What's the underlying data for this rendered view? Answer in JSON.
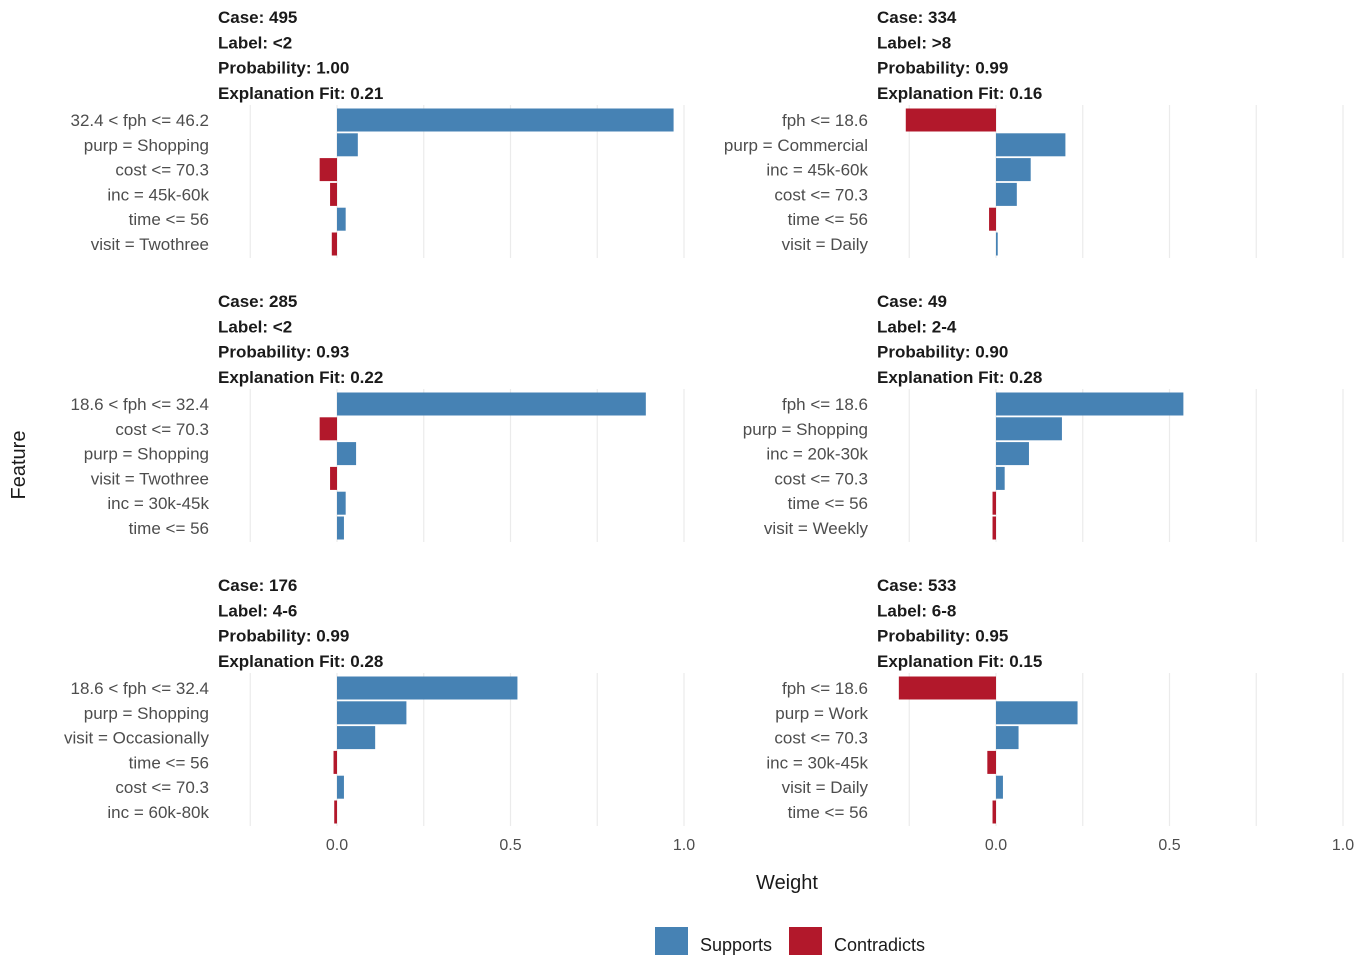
{
  "chart_data": {
    "type": "bar",
    "orientation": "horizontal",
    "xlabel": "Weight",
    "ylabel": "Feature",
    "xlim": [
      -0.25,
      1.0
    ],
    "x_ticks": [
      "0.0",
      "0.5",
      "1.0"
    ],
    "x_tick_values": [
      0.0,
      0.5,
      1.0
    ],
    "grid": true,
    "legend": {
      "placement": "bottom",
      "entries": [
        {
          "name": "Supports",
          "color": "#4682B4"
        },
        {
          "name": "Contradicts",
          "color": "#B2182B"
        }
      ]
    },
    "panels": [
      {
        "case": "Case: 495",
        "label": "Label: <2",
        "probability": "Probability: 1.00",
        "fit": "Explanation Fit: 0.21",
        "features": [
          "32.4 < fph <= 46.2",
          "purp = Shopping",
          "cost <= 70.3",
          "inc = 45k-60k",
          "time <= 56",
          "visit = Twothree"
        ],
        "weights": [
          0.97,
          0.06,
          -0.05,
          -0.02,
          0.025,
          -0.015
        ]
      },
      {
        "case": "Case: 334",
        "label": "Label: >8",
        "probability": "Probability: 0.99",
        "fit": "Explanation Fit: 0.16",
        "features": [
          "fph <= 18.6",
          "purp = Commercial",
          "inc = 45k-60k",
          "cost <= 70.3",
          "time <= 56",
          "visit = Daily"
        ],
        "weights": [
          -0.26,
          0.2,
          0.1,
          0.06,
          -0.02,
          0.005
        ]
      },
      {
        "case": "Case: 285",
        "label": "Label: <2",
        "probability": "Probability: 0.93",
        "fit": "Explanation Fit: 0.22",
        "features": [
          "18.6 < fph <= 32.4",
          "cost <= 70.3",
          "purp = Shopping",
          "visit = Twothree",
          "inc = 30k-45k",
          "time <= 56"
        ],
        "weights": [
          0.89,
          -0.05,
          0.055,
          -0.02,
          0.025,
          0.02
        ]
      },
      {
        "case": "Case: 49",
        "label": "Label: 2-4",
        "probability": "Probability: 0.90",
        "fit": "Explanation Fit: 0.28",
        "features": [
          "fph <= 18.6",
          "purp = Shopping",
          "inc = 20k-30k",
          "cost <= 70.3",
          "time <= 56",
          "visit = Weekly"
        ],
        "weights": [
          0.54,
          0.19,
          0.095,
          0.025,
          -0.01,
          -0.01
        ]
      },
      {
        "case": "Case: 176",
        "label": "Label: 4-6",
        "probability": "Probability: 0.99",
        "fit": "Explanation Fit: 0.28",
        "features": [
          "18.6 < fph <= 32.4",
          "purp = Shopping",
          "visit = Occasionally",
          "time <= 56",
          "cost <= 70.3",
          "inc = 60k-80k"
        ],
        "weights": [
          0.52,
          0.2,
          0.11,
          -0.01,
          0.02,
          -0.008
        ]
      },
      {
        "case": "Case: 533",
        "label": "Label: 6-8",
        "probability": "Probability: 0.95",
        "fit": "Explanation Fit: 0.15",
        "features": [
          "fph <= 18.6",
          "purp = Work",
          "cost <= 70.3",
          "inc = 30k-45k",
          "visit = Daily",
          "time <= 56"
        ],
        "weights": [
          -0.28,
          0.235,
          0.065,
          -0.025,
          0.02,
          -0.01
        ]
      }
    ]
  }
}
